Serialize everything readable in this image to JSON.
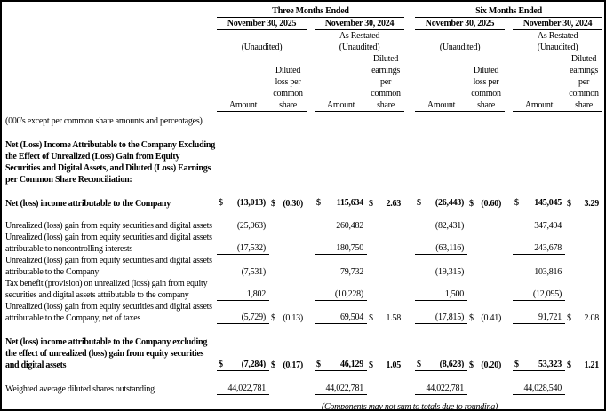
{
  "table": {
    "scale_note": "(000's except per common share amounts and percentages)",
    "periods": [
      {
        "label": "Three Months Ended"
      },
      {
        "label": "Six Months Ended"
      }
    ],
    "groups": [
      {
        "date": "November 30, 2025",
        "sub": "",
        "unaudited": "(Unaudited)"
      },
      {
        "date": "November 30, 2024",
        "sub": "As Restated",
        "unaudited": "(Unaudited)"
      },
      {
        "date": "November 30, 2025",
        "sub": "",
        "unaudited": "(Unaudited)"
      },
      {
        "date": "November 30, 2024",
        "sub": "As Restated",
        "unaudited": "(Unaudited)"
      }
    ],
    "col_headers": [
      "Amount",
      "Diluted loss per common share",
      "Amount",
      "Diluted earnings per common share",
      "Amount",
      "Diluted loss per common share",
      "Amount",
      "Diluted earnings per common share"
    ],
    "rows": [
      {
        "type": "heading",
        "gap_before": 14,
        "label": "Net (Loss) Income Attributable to the Company Excluding the Effect of Unrealized (Loss) Gain from Equity Securities and Digital Assets, and Diluted (Loss) Earnings per Common Share Reconciliation:"
      },
      {
        "type": "data",
        "bold": true,
        "gap_before": 13,
        "label": "Net (loss) income attributable to the Company",
        "cells": [
          {
            "cur": "$",
            "val": "(13,013)",
            "u": true
          },
          {
            "cur": "$",
            "val": "(0.30)"
          },
          {
            "cur": "$",
            "val": "115,634",
            "u": true
          },
          {
            "cur": "$",
            "val": "2.63"
          },
          {
            "cur": "$",
            "val": "(26,443)",
            "u": true
          },
          {
            "cur": "$",
            "val": "(0.60)"
          },
          {
            "cur": "$",
            "val": "145,045",
            "u": true
          },
          {
            "cur": "$",
            "val": "3.29"
          }
        ]
      },
      {
        "type": "data",
        "gap_before": 12,
        "label": "Unrealized (loss) gain from equity securities and digital assets",
        "cells": [
          {
            "val": "(25,063)"
          },
          null,
          {
            "val": "260,482"
          },
          null,
          {
            "val": "(82,431)"
          },
          null,
          {
            "val": "347,494"
          },
          null
        ]
      },
      {
        "type": "data",
        "label": "Unrealized (loss) gain from equity securities and digital assets attributable to noncontrolling interests",
        "cells": [
          {
            "val": "(17,532)",
            "u": true
          },
          null,
          {
            "val": "180,750",
            "u": true
          },
          null,
          {
            "val": "(63,116)",
            "u": true
          },
          null,
          {
            "val": "243,678",
            "u": true
          },
          null
        ]
      },
      {
        "type": "data",
        "label": "Unrealized (loss) gain from equity securities and digital assets attributable to the Company",
        "cells": [
          {
            "val": "(7,531)"
          },
          null,
          {
            "val": "79,732"
          },
          null,
          {
            "val": "(19,315)"
          },
          null,
          {
            "val": "103,816"
          },
          null
        ]
      },
      {
        "type": "data",
        "label": "Tax benefit (provision) on unrealized (loss) gain from equity securities and digital assets attributable to the company",
        "cells": [
          {
            "val": "1,802",
            "u": true
          },
          null,
          {
            "val": "(10,228)",
            "u": true
          },
          null,
          {
            "val": "1,500",
            "u": true
          },
          null,
          {
            "val": "(12,095)",
            "u": true
          },
          null
        ]
      },
      {
        "type": "data",
        "label": "Unrealized (loss) gain from equity securities and digital assets attributable to the Company, net of taxes",
        "cells": [
          {
            "val": "(5,729)",
            "u": true
          },
          {
            "cur": "$",
            "val": "(0.13)"
          },
          {
            "val": "69,504",
            "u": true
          },
          {
            "cur": "$",
            "val": "1.58"
          },
          {
            "val": "(17,815)",
            "u": true
          },
          {
            "cur": "$",
            "val": "(0.41)"
          },
          {
            "val": "91,721",
            "u": true
          },
          {
            "cur": "$",
            "val": "2.08"
          }
        ]
      },
      {
        "type": "data",
        "bold": true,
        "gap_before": 14,
        "label": "Net (loss) income attributable to the Company excluding the effect of unrealized (loss) gain from equity securities and digital assets",
        "cells": [
          {
            "cur": "$",
            "val": "(7,284)",
            "u": true
          },
          {
            "cur": "$",
            "val": "(0.17)"
          },
          {
            "cur": "$",
            "val": "46,129",
            "u": true
          },
          {
            "cur": "$",
            "val": "1.05"
          },
          {
            "cur": "$",
            "val": "(8,628)",
            "u": true
          },
          {
            "cur": "$",
            "val": "(0.20)"
          },
          {
            "cur": "$",
            "val": "53,323",
            "u": true
          },
          {
            "cur": "$",
            "val": "1.21"
          }
        ]
      },
      {
        "type": "data",
        "gap_before": 13,
        "label": "Weighted average diluted shares outstanding",
        "cells": [
          {
            "val": "44,022,781",
            "u": true
          },
          null,
          {
            "val": "44,022,781",
            "u": true
          },
          null,
          {
            "val": "44,022,781",
            "u": true
          },
          null,
          {
            "val": "44,028,540",
            "u": true
          },
          null
        ]
      }
    ],
    "footer": "(Components may not sum to totals due to rounding)"
  }
}
